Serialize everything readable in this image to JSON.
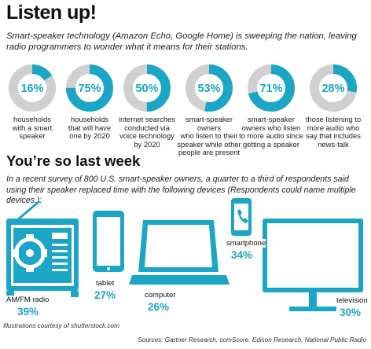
{
  "header": {
    "title": "Listen up!",
    "intro": "Smart-speaker technology (Amazon Echo, Google Home) is sweeping the nation, leaving radio programmers to wonder what it means for their stations."
  },
  "colors": {
    "accent": "#1aa6c4",
    "track": "#d0d0d0",
    "icon": "#1aa6c4"
  },
  "chart_data": [
    {
      "type": "pie",
      "style": "donut",
      "categories": [
        "households with a smart speaker",
        "households that will have one by 2020",
        "internet searches conducted via voice technology by 2020",
        "smart-speaker owners who listen to their speaker while other people are present",
        "smart-speaker owners who listen to more audio since getting a speaker",
        "those listening to more audio who say that includes news-talk"
      ],
      "values": [
        16,
        75,
        50,
        53,
        71,
        28
      ],
      "labels": [
        "16%",
        "75%",
        "50%",
        "53%",
        "71%",
        "28%"
      ],
      "captions": [
        [
          "households",
          "with a smart",
          "speaker"
        ],
        [
          "households",
          "that will have",
          "one by 2020"
        ],
        [
          "internet searches",
          "conducted via",
          "voice technology",
          "by 2020"
        ],
        [
          "smart-speaker owners",
          "who listen to their",
          "speaker while other",
          "people are present"
        ],
        [
          "smart-speaker",
          "owners who listen",
          "to more audio since",
          "getting a speaker"
        ],
        [
          "those listening to",
          "more audio who",
          "say that includes",
          "news-talk"
        ]
      ]
    },
    {
      "type": "bar",
      "title": "You’re so last week",
      "subtitle": "In a recent survey of 800 U.S. smart-speaker owners, a quarter to a third of respondents said using their speaker replaced time with the following devices (Respondents could name multiple devices.):",
      "categories": [
        "AM/FM radio",
        "tablet",
        "computer",
        "smartphone",
        "television"
      ],
      "values": [
        39,
        27,
        26,
        34,
        30
      ],
      "labels": [
        "39%",
        "27%",
        "26%",
        "34%",
        "30%"
      ],
      "icons": [
        "radio-icon",
        "tablet-icon",
        "laptop-icon",
        "smartphone-icon",
        "television-icon"
      ]
    }
  ],
  "footer": {
    "credit": "Illustrations courtesy of shutterstock.com",
    "source": "Sources: Gartner Research, comScore, Edison Research, National Public Radio"
  }
}
